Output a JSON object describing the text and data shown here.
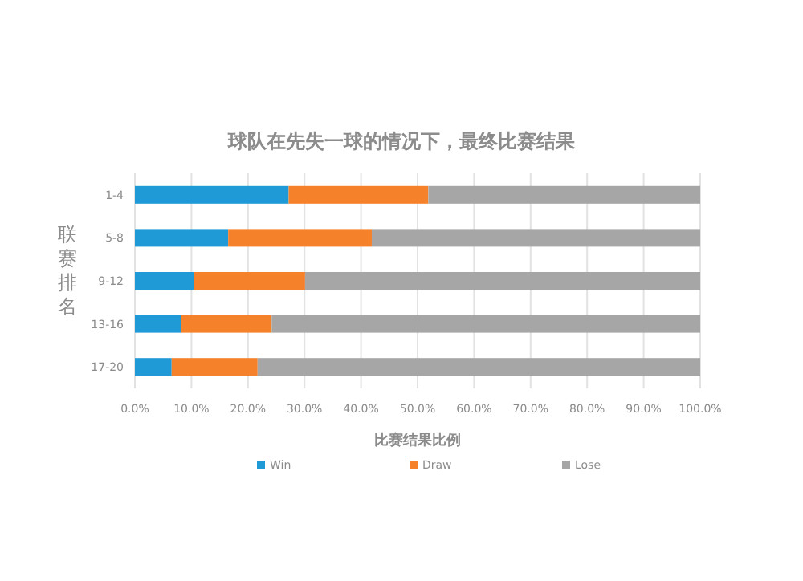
{
  "chart_data": {
    "type": "bar",
    "orientation": "horizontal",
    "stacked": true,
    "title": "球队在先失一球的情况下，最终比赛结果",
    "xlabel": "比赛结果比例",
    "ylabel": "联赛排名",
    "categories": [
      "1-4",
      "5-8",
      "9-12",
      "13-16",
      "17-20"
    ],
    "series": [
      {
        "name": "Win",
        "color": "#1f9ad6",
        "values": [
          27.2,
          16.5,
          10.4,
          8.1,
          6.5
        ]
      },
      {
        "name": "Draw",
        "color": "#f5812a",
        "values": [
          24.7,
          25.4,
          19.7,
          16.1,
          15.2
        ]
      },
      {
        "name": "Lose",
        "color": "#a6a6a6",
        "values": [
          48.1,
          58.1,
          69.9,
          75.8,
          78.3
        ]
      }
    ],
    "xlim": [
      0,
      100
    ],
    "xticks": [
      {
        "value": 0,
        "label": "0.0%"
      },
      {
        "value": 10,
        "label": "10.0%"
      },
      {
        "value": 20,
        "label": "20.0%"
      },
      {
        "value": 30,
        "label": "30.0%"
      },
      {
        "value": 40,
        "label": "40.0%"
      },
      {
        "value": 50,
        "label": "50.0%"
      },
      {
        "value": 60,
        "label": "60.0%"
      },
      {
        "value": 70,
        "label": "70.0%"
      },
      {
        "value": 80,
        "label": "80.0%"
      },
      {
        "value": 90,
        "label": "90.0%"
      },
      {
        "value": 100,
        "label": "100.0%"
      }
    ],
    "grid": "x",
    "legend": "bottom"
  }
}
